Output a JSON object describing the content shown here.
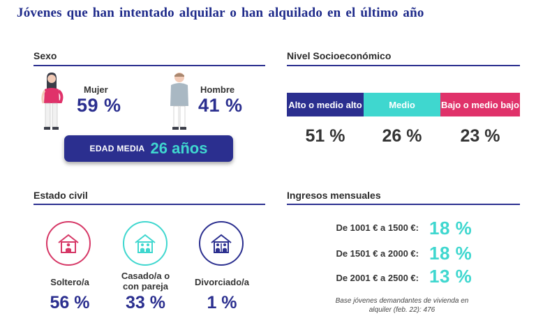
{
  "title": "Jóvenes que han intentado alquilar  o han alquilado  en el último año",
  "sexo": {
    "heading": "Sexo",
    "mujer": {
      "label": "Mujer",
      "value": "59 %"
    },
    "hombre": {
      "label": "Hombre",
      "value": "41 %"
    },
    "edad_label": "EDAD MEDIA",
    "edad_value": "26 años"
  },
  "nivel": {
    "heading": "Nivel Socioeconómico",
    "levels": [
      {
        "label": "Alto o medio alto",
        "value": "51 %",
        "color": "#2b2f8f"
      },
      {
        "label": "Medio",
        "value": "26 %",
        "color": "#3fd7cf"
      },
      {
        "label": "Bajo o medio bajo",
        "value": "23 %",
        "color": "#e0326a"
      }
    ]
  },
  "civil": {
    "heading": "Estado civil",
    "items": [
      {
        "label": "Soltero/a",
        "value": "56 %",
        "color": "#d63766"
      },
      {
        "label": "Casado/a o con pareja",
        "value": "33 %",
        "color": "#3fd7cf"
      },
      {
        "label": "Divorciado/a",
        "value": "1 %",
        "color": "#2b2f8f"
      }
    ]
  },
  "ingresos": {
    "heading": "Ingresos mensuales",
    "rows": [
      {
        "label": "De 1001 € a 1500 €:",
        "value": "18 %"
      },
      {
        "label": "De 1501 € a 2000 €:",
        "value": "18 %"
      },
      {
        "label": "De 2001 € a 2500 €:",
        "value": "13 %"
      }
    ],
    "note": "Base jóvenes demandantes de vivienda en alquiler (feb. 22): 476"
  }
}
